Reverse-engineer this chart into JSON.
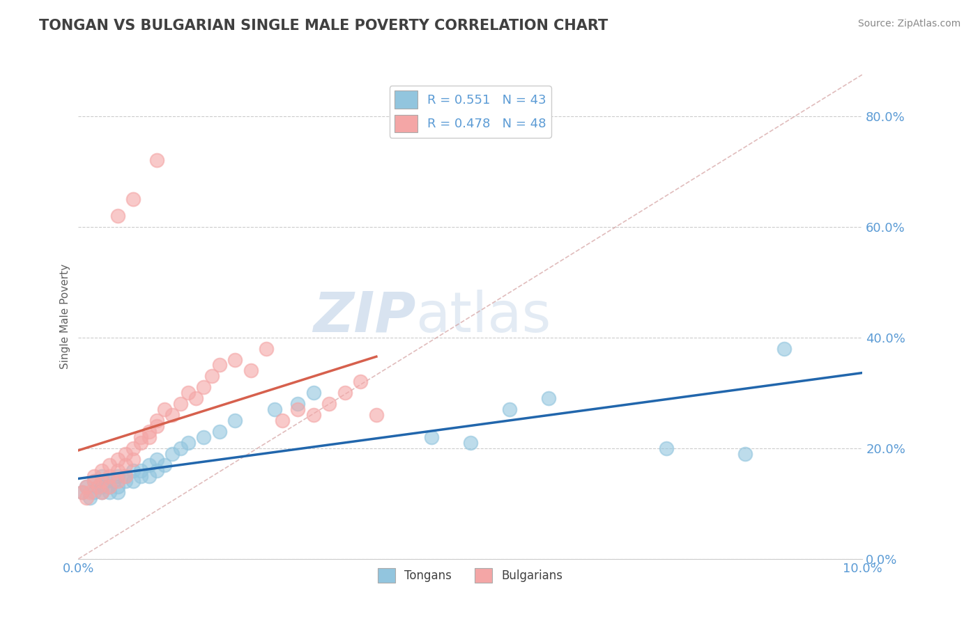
{
  "title": "TONGAN VS BULGARIAN SINGLE MALE POVERTY CORRELATION CHART",
  "source": "Source: ZipAtlas.com",
  "xlabel": "",
  "ylabel": "Single Male Poverty",
  "xlim": [
    0.0,
    0.1
  ],
  "ylim": [
    0.0,
    0.875
  ],
  "yticks": [
    0.0,
    0.2,
    0.4,
    0.6,
    0.8
  ],
  "xticks": [
    0.0,
    0.1
  ],
  "legend_r1": "R = 0.551   N = 43",
  "legend_r2": "R = 0.478   N = 48",
  "tongan_color": "#92c5de",
  "bulgarian_color": "#f4a6a6",
  "tongan_line_color": "#2166ac",
  "bulgarian_line_color": "#d6604d",
  "ref_line_color": "#cccccc",
  "background_color": "#ffffff",
  "grid_color": "#cccccc",
  "axis_label_color": "#5b9bd5",
  "title_color": "#404040",
  "watermark_zip": "ZIP",
  "watermark_atlas": "atlas",
  "tongans_x": [
    0.0005,
    0.001,
    0.0015,
    0.002,
    0.002,
    0.0025,
    0.003,
    0.003,
    0.003,
    0.0035,
    0.004,
    0.004,
    0.0045,
    0.005,
    0.005,
    0.005,
    0.006,
    0.006,
    0.007,
    0.007,
    0.008,
    0.008,
    0.009,
    0.009,
    0.01,
    0.01,
    0.011,
    0.012,
    0.013,
    0.014,
    0.016,
    0.018,
    0.02,
    0.025,
    0.028,
    0.03,
    0.045,
    0.05,
    0.055,
    0.06,
    0.075,
    0.085,
    0.09
  ],
  "tongans_y": [
    0.12,
    0.13,
    0.11,
    0.12,
    0.14,
    0.13,
    0.15,
    0.12,
    0.13,
    0.14,
    0.13,
    0.12,
    0.14,
    0.15,
    0.13,
    0.12,
    0.14,
    0.15,
    0.16,
    0.14,
    0.15,
    0.16,
    0.17,
    0.15,
    0.16,
    0.18,
    0.17,
    0.19,
    0.2,
    0.21,
    0.22,
    0.23,
    0.25,
    0.27,
    0.28,
    0.3,
    0.22,
    0.21,
    0.27,
    0.29,
    0.2,
    0.19,
    0.38
  ],
  "bulgarians_x": [
    0.0005,
    0.001,
    0.001,
    0.0015,
    0.002,
    0.002,
    0.0025,
    0.003,
    0.003,
    0.003,
    0.004,
    0.004,
    0.004,
    0.005,
    0.005,
    0.005,
    0.006,
    0.006,
    0.006,
    0.007,
    0.007,
    0.008,
    0.008,
    0.009,
    0.009,
    0.01,
    0.01,
    0.011,
    0.012,
    0.013,
    0.014,
    0.015,
    0.016,
    0.017,
    0.018,
    0.02,
    0.022,
    0.024,
    0.026,
    0.028,
    0.03,
    0.032,
    0.034,
    0.036,
    0.038,
    0.005,
    0.007,
    0.01
  ],
  "bulgarians_y": [
    0.12,
    0.11,
    0.13,
    0.12,
    0.14,
    0.15,
    0.13,
    0.14,
    0.16,
    0.12,
    0.15,
    0.13,
    0.17,
    0.16,
    0.14,
    0.18,
    0.15,
    0.17,
    0.19,
    0.18,
    0.2,
    0.22,
    0.21,
    0.23,
    0.22,
    0.24,
    0.25,
    0.27,
    0.26,
    0.28,
    0.3,
    0.29,
    0.31,
    0.33,
    0.35,
    0.36,
    0.34,
    0.38,
    0.25,
    0.27,
    0.26,
    0.28,
    0.3,
    0.32,
    0.26,
    0.62,
    0.65,
    0.72
  ],
  "tongan_line": [
    0.0,
    0.09,
    0.1,
    0.33
  ],
  "bulgarian_line": [
    0.0,
    0.035,
    0.11,
    0.4
  ]
}
